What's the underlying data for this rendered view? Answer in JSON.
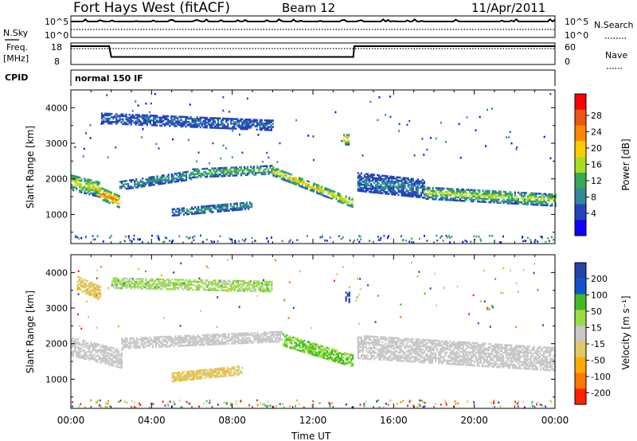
{
  "header": {
    "station": "Fort Hays West (fitACF)",
    "beam": "Beam 12",
    "date": "11/Apr/2011"
  },
  "panels": {
    "nsky": {
      "label": "N.Sky",
      "tick_top": "10^5",
      "tick_bottom": "10^0",
      "right_label": "N.Search",
      "right_top": "10^5",
      "right_bottom": "10^0"
    },
    "freq": {
      "label_line1": "Freq.",
      "label_line2": "[MHz]",
      "tick_top": "18",
      "tick_bottom": "8",
      "right_top": "60",
      "right_bottom": "0",
      "right_label": "Nave"
    },
    "cpid": {
      "label": "CPID",
      "program": "normal 150 IF"
    },
    "power": {
      "ylabel": "Slant Range [km]",
      "cbar_label": "Power [dB]",
      "cbar_ticks": [
        "28",
        "24",
        "20",
        "16",
        "12",
        "8",
        "4"
      ]
    },
    "velocity": {
      "ylabel": "Slant Range [km]",
      "cbar_label": "Velocity [m s⁻¹]",
      "cbar_ticks": [
        "200",
        "100",
        "50",
        "15",
        "-15",
        "-50",
        "-100",
        "-200"
      ]
    }
  },
  "axis": {
    "xlabel": "Time UT",
    "xticks": [
      "00:00",
      "04:00",
      "08:00",
      "12:00",
      "16:00",
      "20:00",
      "00:00"
    ],
    "yticks": [
      "4000",
      "3000",
      "2000",
      "1000"
    ]
  },
  "colors": {
    "power_scale": [
      "#ff0000",
      "#ee5511",
      "#ff8800",
      "#ffcc00",
      "#aadd22",
      "#33aa55",
      "#338899",
      "#2244bb",
      "#1100ff"
    ],
    "velocity_scale": [
      "#2244aa",
      "#1155cc",
      "#44bb22",
      "#99dd44",
      "#c8c8c8",
      "#e0c866",
      "#ffaa00",
      "#ff7700",
      "#ff2200"
    ],
    "ground_scatter": "#c8c8c8"
  },
  "chart_data": [
    {
      "type": "heatmap",
      "title": "Power",
      "ylabel": "Slant Range [km]",
      "xlabel": "",
      "xlim": [
        0,
        24
      ],
      "ylim": [
        180,
        4500
      ],
      "units": "dB",
      "scale_range": [
        0,
        30
      ],
      "bands": [
        {
          "t0": 0.0,
          "t1": 1.4,
          "r_start": 1900,
          "r_end": 1700,
          "width": 450,
          "power": 18
        },
        {
          "t0": 1.4,
          "t1": 2.4,
          "r_start": 1600,
          "r_end": 1350,
          "width": 350,
          "power": 24
        },
        {
          "t0": 2.4,
          "t1": 6.0,
          "r_start": 1800,
          "r_end": 2100,
          "width": 250,
          "power": 10
        },
        {
          "t0": 6.0,
          "t1": 10.0,
          "r_start": 2150,
          "r_end": 2250,
          "width": 250,
          "power": 14
        },
        {
          "t0": 10.0,
          "t1": 14.0,
          "r_start": 2200,
          "r_end": 1300,
          "width": 250,
          "power": 20
        },
        {
          "t0": 14.2,
          "t1": 17.5,
          "r_start": 1900,
          "r_end": 1700,
          "width": 500,
          "power": 8
        },
        {
          "t0": 17.5,
          "t1": 24.0,
          "r_start": 1600,
          "r_end": 1400,
          "width": 350,
          "power": 16
        },
        {
          "t0": 1.5,
          "t1": 10.0,
          "r_start": 3700,
          "r_end": 3500,
          "width": 300,
          "power": 6
        },
        {
          "t0": 5.0,
          "t1": 9.0,
          "r_start": 1050,
          "r_end": 1250,
          "width": 200,
          "power": 10
        },
        {
          "t0": 13.5,
          "t1": 13.8,
          "r_start": 3100,
          "r_end": 3100,
          "width": 300,
          "power": 22
        }
      ]
    },
    {
      "type": "heatmap",
      "title": "Velocity",
      "ylabel": "Slant Range [km]",
      "xlabel": "Time UT",
      "xlim": [
        0,
        24
      ],
      "ylim": [
        180,
        4500
      ],
      "units": "m s-1",
      "scale_range": [
        -200,
        200
      ],
      "bands": [
        {
          "t0": 0.0,
          "t1": 2.5,
          "r_start": 1900,
          "r_end": 1550,
          "width": 500,
          "velocity": 0,
          "ground_scatter": true
        },
        {
          "t0": 2.5,
          "t1": 10.5,
          "r_start": 2000,
          "r_end": 2200,
          "width": 300,
          "velocity": 0,
          "ground_scatter": true
        },
        {
          "t0": 10.5,
          "t1": 14.0,
          "r_start": 2100,
          "r_end": 1500,
          "width": 350,
          "velocity": 30
        },
        {
          "t0": 14.2,
          "t1": 24.0,
          "r_start": 1900,
          "r_end": 1550,
          "width": 650,
          "velocity": 0,
          "ground_scatter": true
        },
        {
          "t0": 5.0,
          "t1": 8.5,
          "r_start": 1050,
          "r_end": 1250,
          "width": 250,
          "velocity": -40
        },
        {
          "t0": 2.0,
          "t1": 10.0,
          "r_start": 3700,
          "r_end": 3600,
          "width": 300,
          "velocity": 20
        },
        {
          "t0": 0.3,
          "t1": 1.5,
          "r_start": 3700,
          "r_end": 3400,
          "width": 400,
          "velocity": -40
        },
        {
          "t0": 13.6,
          "t1": 13.8,
          "r_start": 3300,
          "r_end": 3300,
          "width": 300,
          "velocity": 180
        }
      ]
    }
  ]
}
